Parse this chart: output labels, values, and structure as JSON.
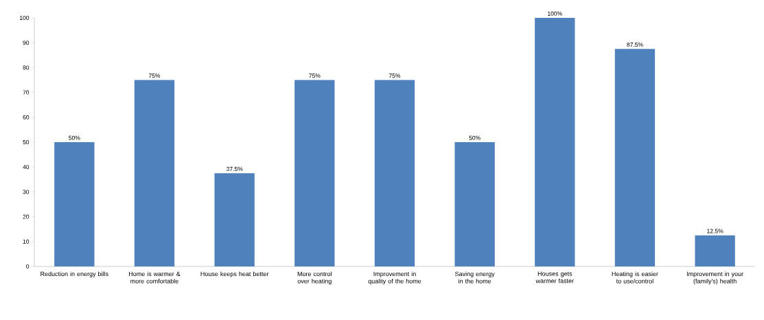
{
  "chart_data": {
    "type": "bar",
    "categories": [
      "Reduction in energy bills",
      "Home is warmer & more comfortable",
      "House keeps heat better",
      "More control over heating",
      "Improvement in quality of the home",
      "Saving energy in the home",
      "Houses gets warmer faster",
      "Heating is easier to use/control",
      "Improvement in your (family's) health"
    ],
    "values": [
      50,
      75,
      37.5,
      75,
      75,
      50,
      100,
      87.5,
      12.5
    ],
    "value_labels": [
      "50%",
      "75%",
      "37.5%",
      "75%",
      "75%",
      "50%",
      "100%",
      "87.5%",
      "12.5%"
    ],
    "color": "#4f81bd",
    "ylim": [
      0,
      100
    ],
    "yticks": [
      0,
      10,
      20,
      30,
      40,
      50,
      60,
      70,
      80,
      90,
      100
    ],
    "grid": false
  }
}
